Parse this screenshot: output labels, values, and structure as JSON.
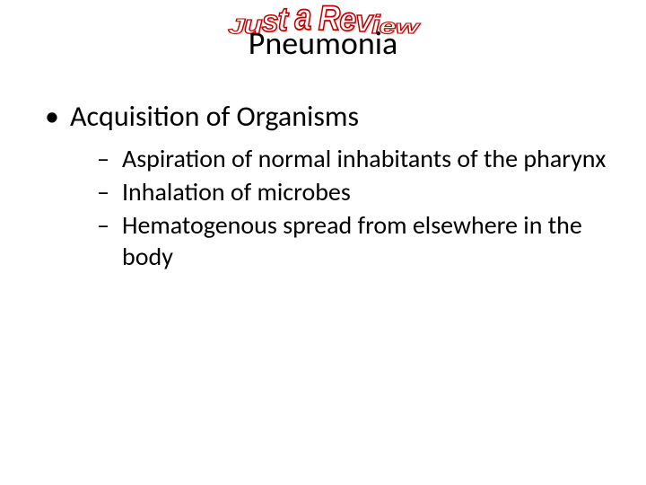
{
  "header": {
    "wordart": "Just a Review",
    "title": "Pneumonia"
  },
  "content": {
    "bullet_main": "Acquisition of Organisms",
    "sub_bullets": [
      "Aspiration of normal inhabitants of the pharynx",
      "Inhalation of microbes",
      "Hematogenous spread from elsewhere in the body"
    ]
  },
  "styling": {
    "background_color": "#ffffff",
    "text_color": "#000000",
    "wordart_stroke": "#c00000",
    "wordart_fill": "#ffffff",
    "title_fontsize": 36,
    "level1_fontsize": 32,
    "level2_fontsize": 28,
    "font_family": "Calibri"
  }
}
